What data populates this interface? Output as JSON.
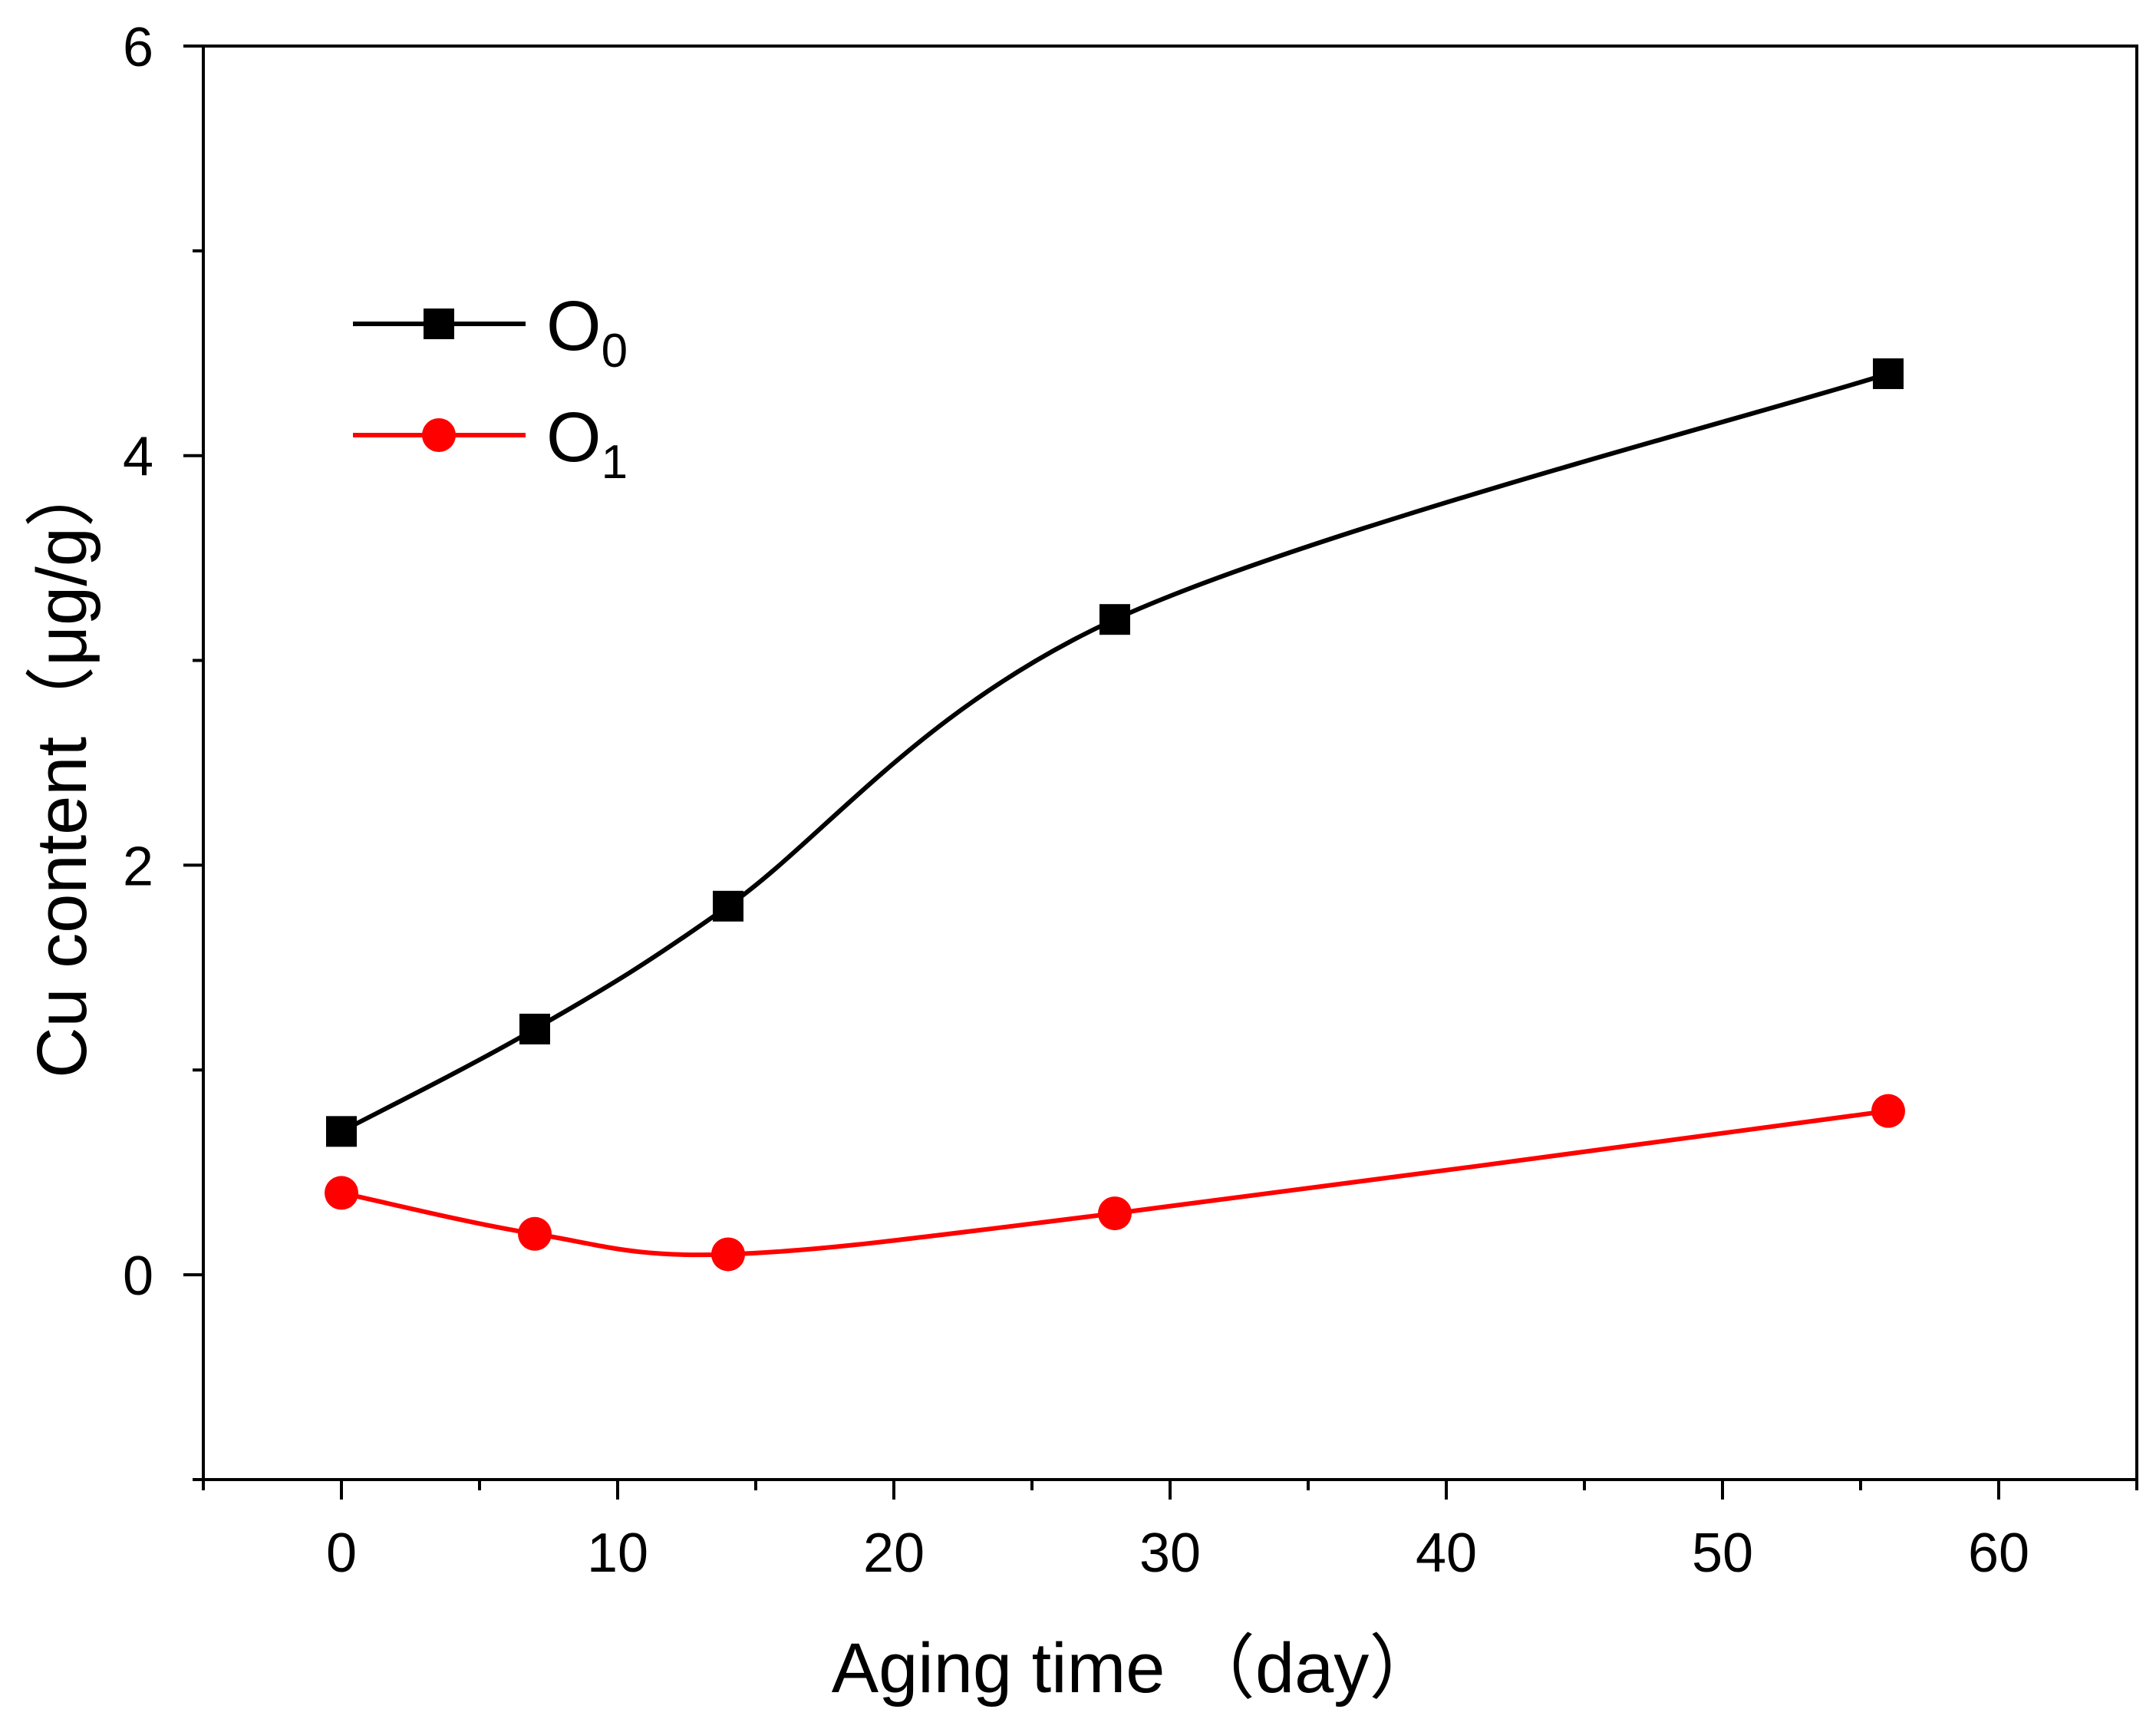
{
  "chart_data": {
    "type": "line",
    "title": "",
    "xlabel": "Aging time （day）",
    "ylabel": "Cu content（μg/g）",
    "xlim": [
      -5,
      65
    ],
    "ylim": [
      -1,
      6
    ],
    "xticks": [
      0,
      10,
      20,
      30,
      40,
      50,
      60
    ],
    "xtick_labels": [
      "0",
      "10",
      "20",
      "30",
      "40",
      "50",
      "60"
    ],
    "yticks": [
      0,
      2,
      4,
      6
    ],
    "ytick_labels": [
      "0",
      "2",
      "4",
      "6"
    ],
    "grid": false,
    "legend_position": "top-left",
    "series": [
      {
        "name": "O0",
        "label_main": "O",
        "label_sub": "0",
        "color": "#000000",
        "marker": "square",
        "x": [
          0,
          7,
          14,
          28,
          56
        ],
        "y": [
          0.7,
          1.2,
          1.8,
          3.2,
          4.4
        ]
      },
      {
        "name": "O1",
        "label_main": "O",
        "label_sub": "1",
        "color": "#ff0000",
        "marker": "circle",
        "x": [
          0,
          7,
          14,
          28,
          56
        ],
        "y": [
          0.4,
          0.2,
          0.1,
          0.3,
          0.8
        ]
      }
    ]
  }
}
